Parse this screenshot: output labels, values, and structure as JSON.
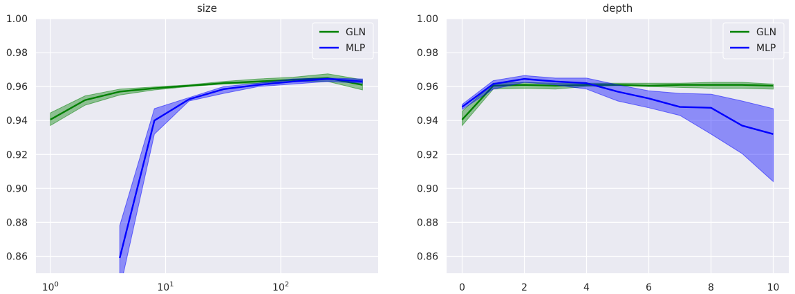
{
  "chart_data": [
    {
      "type": "line",
      "title": "size",
      "xlabel": "",
      "ylabel": "",
      "xscale": "log",
      "xlim": [
        0.75,
        700
      ],
      "ylim": [
        0.85,
        1.0
      ],
      "yticks": [
        0.86,
        0.88,
        0.9,
        0.92,
        0.94,
        0.96,
        0.98,
        1.0
      ],
      "ytick_labels": [
        "0.86",
        "0.88",
        "0.90",
        "0.92",
        "0.94",
        "0.96",
        "0.98",
        "1.00"
      ],
      "xticks": [
        1,
        10,
        100
      ],
      "xtick_labels": [
        {
          "base": "10",
          "exp": "0"
        },
        {
          "base": "10",
          "exp": "1"
        },
        {
          "base": "10",
          "exp": "2"
        }
      ],
      "grid": true,
      "legend_position": "top-right",
      "series": [
        {
          "name": "GLN",
          "color": "#008000",
          "x": [
            1,
            2,
            4,
            8,
            16,
            32,
            64,
            128,
            256,
            512
          ],
          "y": [
            0.9405,
            0.952,
            0.957,
            0.959,
            0.9605,
            0.962,
            0.963,
            0.964,
            0.965,
            0.961
          ],
          "lower": [
            0.937,
            0.949,
            0.955,
            0.958,
            0.96,
            0.9615,
            0.962,
            0.963,
            0.963,
            0.958
          ],
          "upper": [
            0.9445,
            0.9545,
            0.9585,
            0.9598,
            0.961,
            0.963,
            0.9645,
            0.9655,
            0.9675,
            0.964
          ]
        },
        {
          "name": "MLP",
          "color": "#0000ff",
          "x": [
            4,
            8,
            16,
            32,
            64,
            128,
            256,
            512
          ],
          "y": [
            0.859,
            0.94,
            0.9525,
            0.9585,
            0.961,
            0.963,
            0.9645,
            0.963
          ],
          "lower": [
            0.84,
            0.932,
            0.9515,
            0.956,
            0.96,
            0.9615,
            0.963,
            0.962
          ],
          "upper": [
            0.878,
            0.947,
            0.9535,
            0.96,
            0.962,
            0.9645,
            0.965,
            0.9645
          ]
        }
      ]
    },
    {
      "type": "line",
      "title": "depth",
      "xlabel": "",
      "ylabel": "",
      "xscale": "linear",
      "xlim": [
        -0.5,
        10.5
      ],
      "ylim": [
        0.85,
        1.0
      ],
      "yticks": [
        0.86,
        0.88,
        0.9,
        0.92,
        0.94,
        0.96,
        0.98,
        1.0
      ],
      "ytick_labels": [
        "0.86",
        "0.88",
        "0.90",
        "0.92",
        "0.94",
        "0.96",
        "0.98",
        "1.00"
      ],
      "xticks": [
        0,
        2,
        4,
        6,
        8,
        10
      ],
      "xtick_labels": [
        "0",
        "2",
        "4",
        "6",
        "8",
        "10"
      ],
      "grid": true,
      "legend_position": "top-right",
      "series": [
        {
          "name": "GLN",
          "color": "#008000",
          "x": [
            0,
            1,
            2,
            3,
            4,
            5,
            6,
            7,
            8,
            9,
            10
          ],
          "y": [
            0.9405,
            0.9605,
            0.961,
            0.9605,
            0.961,
            0.961,
            0.9605,
            0.961,
            0.961,
            0.961,
            0.9605
          ],
          "lower": [
            0.937,
            0.9585,
            0.959,
            0.9585,
            0.96,
            0.9605,
            0.96,
            0.9595,
            0.959,
            0.959,
            0.9585
          ],
          "upper": [
            0.9455,
            0.962,
            0.9625,
            0.962,
            0.962,
            0.962,
            0.962,
            0.962,
            0.9625,
            0.9625,
            0.9615
          ]
        },
        {
          "name": "MLP",
          "color": "#0000ff",
          "x": [
            0,
            1,
            2,
            3,
            4,
            5,
            6,
            7,
            8,
            9,
            10
          ],
          "y": [
            0.948,
            0.9615,
            0.9645,
            0.963,
            0.962,
            0.957,
            0.953,
            0.948,
            0.9475,
            0.937,
            0.932
          ],
          "lower": [
            0.9465,
            0.9585,
            0.9625,
            0.961,
            0.9585,
            0.9515,
            0.9475,
            0.943,
            0.932,
            0.9205,
            0.904
          ],
          "upper": [
            0.9495,
            0.9635,
            0.9665,
            0.965,
            0.965,
            0.961,
            0.9575,
            0.956,
            0.9555,
            0.9515,
            0.947
          ]
        }
      ]
    }
  ]
}
